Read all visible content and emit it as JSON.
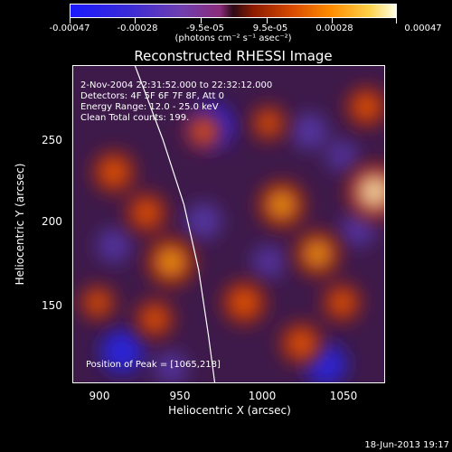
{
  "chart_data": {
    "type": "heatmap",
    "colorbar": {
      "tick_labels": [
        "-0.00047",
        "-0.00028",
        "-9.5e-05",
        "9.5e-05",
        "0.00028",
        "0.00047"
      ],
      "tick_values": [
        -0.00047,
        -0.00028,
        -9.5e-05,
        9.5e-05,
        0.00028,
        0.00047
      ],
      "range": [
        -0.00047,
        0.00047
      ],
      "unit_label": "(photons cm⁻² s⁻¹ asec⁻²)",
      "colors": [
        "#1a1aff",
        "#6f3fb0",
        "#2b0a14",
        "#d84a00",
        "#ffd24a",
        "#ffffe6"
      ]
    },
    "title": "Reconstructed RHESSI Image",
    "xlabel": "Heliocentric X (arcsec)",
    "ylabel": "Heliocentric Y (arcsec)",
    "xlim": [
      880,
      1072
    ],
    "ylim": [
      100,
      295
    ],
    "xticks": [
      900,
      950,
      1000,
      1050
    ],
    "yticks": [
      150,
      200,
      250
    ],
    "annotations": [
      "2-Nov-2004 22:31:52.000 to 22:32:12.000",
      "Detectors: 4F 5F 6F 7F 8F, Att 0",
      "Energy Range: 12.0 - 25.0 keV",
      "Clean    Total counts: 199."
    ],
    "peak_label": "Position of Peak = [1065,218]",
    "peak": [
      1065,
      218
    ],
    "limb_curve": [
      [
        918,
        295
      ],
      [
        935,
        250
      ],
      [
        948,
        210
      ],
      [
        957,
        170
      ],
      [
        963,
        130
      ],
      [
        967,
        100
      ]
    ],
    "emission_blobs": [
      {
        "x": 1065,
        "y": 218,
        "intensity": 1.0
      },
      {
        "x": 1008,
        "y": 210,
        "intensity": 0.75
      },
      {
        "x": 1030,
        "y": 180,
        "intensity": 0.7
      },
      {
        "x": 940,
        "y": 175,
        "intensity": 0.8
      },
      {
        "x": 905,
        "y": 230,
        "intensity": 0.6
      },
      {
        "x": 925,
        "y": 205,
        "intensity": 0.55
      },
      {
        "x": 985,
        "y": 150,
        "intensity": 0.65
      },
      {
        "x": 1020,
        "y": 125,
        "intensity": 0.6
      },
      {
        "x": 1060,
        "y": 270,
        "intensity": 0.55
      },
      {
        "x": 930,
        "y": 140,
        "intensity": 0.5
      },
      {
        "x": 960,
        "y": 255,
        "intensity": 0.45
      },
      {
        "x": 1045,
        "y": 150,
        "intensity": 0.5
      },
      {
        "x": 895,
        "y": 150,
        "intensity": 0.4
      },
      {
        "x": 1000,
        "y": 260,
        "intensity": 0.4
      }
    ],
    "absorption_blobs": [
      {
        "x": 965,
        "y": 258,
        "intensity": 0.9
      },
      {
        "x": 910,
        "y": 120,
        "intensity": 0.85
      },
      {
        "x": 1035,
        "y": 112,
        "intensity": 0.8
      },
      {
        "x": 960,
        "y": 200,
        "intensity": 0.55
      },
      {
        "x": 1025,
        "y": 255,
        "intensity": 0.55
      },
      {
        "x": 905,
        "y": 185,
        "intensity": 0.5
      },
      {
        "x": 1000,
        "y": 175,
        "intensity": 0.45
      },
      {
        "x": 1055,
        "y": 195,
        "intensity": 0.5
      },
      {
        "x": 940,
        "y": 110,
        "intensity": 0.45
      },
      {
        "x": 1045,
        "y": 240,
        "intensity": 0.4
      }
    ]
  },
  "footer": "18-Jun-2013 19:17"
}
